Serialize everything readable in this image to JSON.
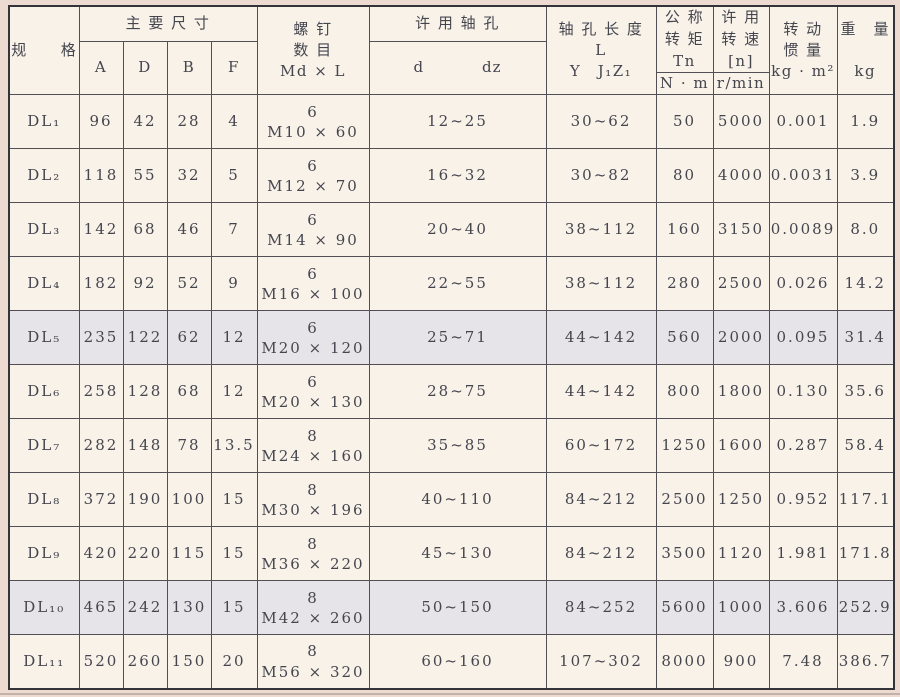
{
  "colors": {
    "paper_margin": "#eddbd2",
    "cell_bg": "#f8f2e9",
    "shaded_row_bg": "#e7e4e9",
    "line": "#514f55",
    "text": "#45454e"
  },
  "table": {
    "header": {
      "spec": "规　　格",
      "main_dims": "主 要 尺 寸",
      "dim_cols": [
        "A",
        "D",
        "B",
        "F"
      ],
      "screws": "螺 钉\n数 目\nMd × L",
      "bore": "许 用 轴 孔",
      "bore_d": "d",
      "bore_dz": "dz",
      "bore_length": "轴 孔 长 度\nL\nY　J₁Z₁",
      "torque": "公 称\n转 矩\nTn",
      "torque_unit": "N · m",
      "speed": "许 用\n转 速\n[n]",
      "speed_unit": "r/min",
      "inertia": "转 动\n惯 量\nkg · m²",
      "weight_label": "重　量",
      "weight_unit": "kg"
    },
    "rows": [
      {
        "spec": "DL₁",
        "dims": [
          "96",
          "42",
          "28",
          "4"
        ],
        "screws": "6\nM10 × 60",
        "bore": "12~25",
        "length": "30~62",
        "torque": "50",
        "speed": "5000",
        "inertia": "0.001",
        "weight": "1.9",
        "shaded": false
      },
      {
        "spec": "DL₂",
        "dims": [
          "118",
          "55",
          "32",
          "5"
        ],
        "screws": "6\nM12 × 70",
        "bore": "16~32",
        "length": "30~82",
        "torque": "80",
        "speed": "4000",
        "inertia": "0.0031",
        "weight": "3.9",
        "shaded": false
      },
      {
        "spec": "DL₃",
        "dims": [
          "142",
          "68",
          "46",
          "7"
        ],
        "screws": "6\nM14 × 90",
        "bore": "20~40",
        "length": "38~112",
        "torque": "160",
        "speed": "3150",
        "inertia": "0.0089",
        "weight": "8.0",
        "shaded": false
      },
      {
        "spec": "DL₄",
        "dims": [
          "182",
          "92",
          "52",
          "9"
        ],
        "screws": "6\nM16 × 100",
        "bore": "22~55",
        "length": "38~112",
        "torque": "280",
        "speed": "2500",
        "inertia": "0.026",
        "weight": "14.2",
        "shaded": false
      },
      {
        "spec": "DL₅",
        "dims": [
          "235",
          "122",
          "62",
          "12"
        ],
        "screws": "6\nM20 × 120",
        "bore": "25~71",
        "length": "44~142",
        "torque": "560",
        "speed": "2000",
        "inertia": "0.095",
        "weight": "31.4",
        "shaded": true
      },
      {
        "spec": "DL₆",
        "dims": [
          "258",
          "128",
          "68",
          "12"
        ],
        "screws": "6\nM20 × 130",
        "bore": "28~75",
        "length": "44~142",
        "torque": "800",
        "speed": "1800",
        "inertia": "0.130",
        "weight": "35.6",
        "shaded": false
      },
      {
        "spec": "DL₇",
        "dims": [
          "282",
          "148",
          "78",
          "13.5"
        ],
        "screws": "8\nM24 × 160",
        "bore": "35~85",
        "length": "60~172",
        "torque": "1250",
        "speed": "1600",
        "inertia": "0.287",
        "weight": "58.4",
        "shaded": false
      },
      {
        "spec": "DL₈",
        "dims": [
          "372",
          "190",
          "100",
          "15"
        ],
        "screws": "8\nM30 × 196",
        "bore": "40~110",
        "length": "84~212",
        "torque": "2500",
        "speed": "1250",
        "inertia": "0.952",
        "weight": "117.1",
        "shaded": false
      },
      {
        "spec": "DL₉",
        "dims": [
          "420",
          "220",
          "115",
          "15"
        ],
        "screws": "8\nM36 × 220",
        "bore": "45~130",
        "length": "84~212",
        "torque": "3500",
        "speed": "1120",
        "inertia": "1.981",
        "weight": "171.8",
        "shaded": false
      },
      {
        "spec": "DL₁₀",
        "dims": [
          "465",
          "242",
          "130",
          "15"
        ],
        "screws": "8\nM42 × 260",
        "bore": "50~150",
        "length": "84~252",
        "torque": "5600",
        "speed": "1000",
        "inertia": "3.606",
        "weight": "252.9",
        "shaded": true
      },
      {
        "spec": "DL₁₁",
        "dims": [
          "520",
          "260",
          "150",
          "20"
        ],
        "screws": "8\nM56 × 320",
        "bore": "60~160",
        "length": "107~302",
        "torque": "8000",
        "speed": "900",
        "inertia": "7.48",
        "weight": "386.7",
        "shaded": false
      }
    ]
  }
}
